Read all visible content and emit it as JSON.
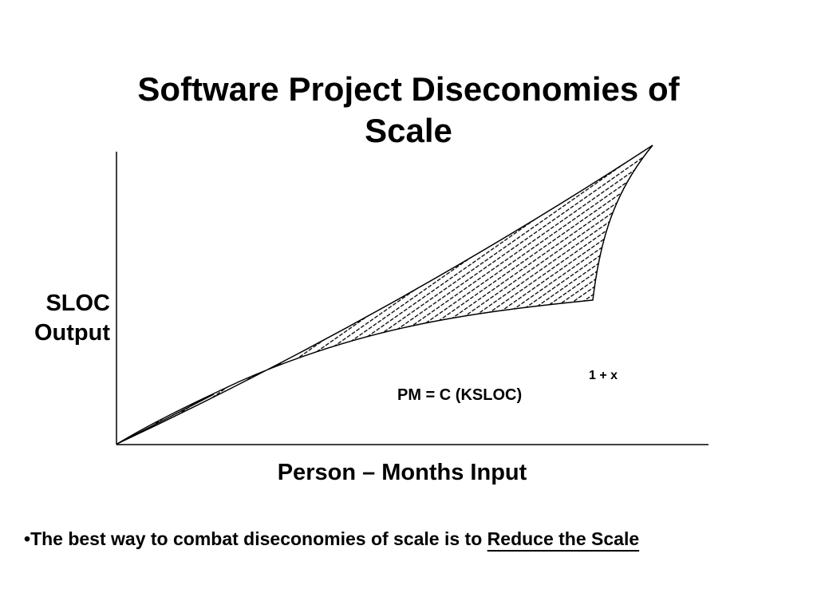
{
  "slide": {
    "title": "Software Project Diseconomies of Scale",
    "y_axis_label_line1": "SLOC",
    "y_axis_label_line2": "Output",
    "x_axis_label": "Person – Months Input",
    "formula_base": "PM =  C (KSLOC)",
    "formula_exponent": "1 + x",
    "bullet_marker": "•",
    "bullet_text": "The best way to combat diseconomies of scale is to ",
    "bullet_emphasis": "Reduce the Scale"
  },
  "colors": {
    "background": "#ffffff",
    "ink": "#000000"
  }
}
